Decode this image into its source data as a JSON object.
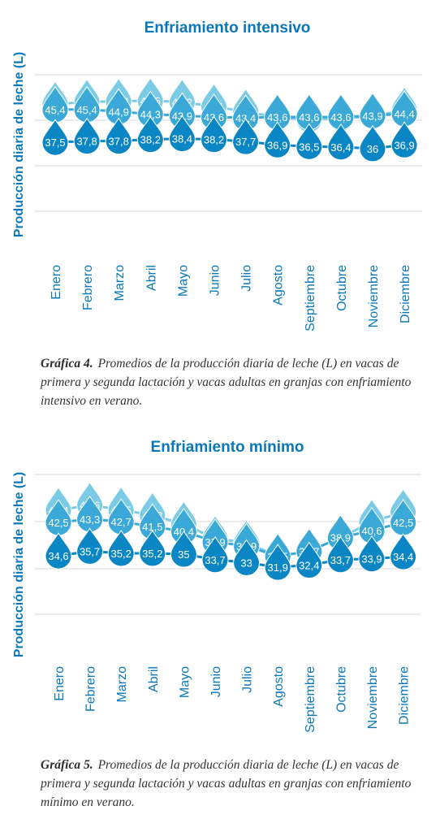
{
  "colors": {
    "title": "#0a78b8",
    "series_primera": "#7ccbe6",
    "series_segunda": "#3aa9d8",
    "series_adultas": "#0a86c4",
    "grid": "#d9d9d9",
    "axis_text": "#0a78b8"
  },
  "chart_data": [
    {
      "type": "line",
      "title": "Enfriamiento intensivo",
      "ylabel": "Producción diaria de leche (L)",
      "xlabel": "",
      "ylim": [
        10,
        60
      ],
      "grid": true,
      "legend": "none",
      "categories": [
        "Enero",
        "Febrero",
        "Marzo",
        "Abril",
        "Mayo",
        "Junio",
        "Julio",
        "Agosto",
        "Septiembre",
        "Octubre",
        "Noviembre",
        "Diciembre"
      ],
      "series": [
        {
          "values": [
            46.7,
            47.2,
            47.4,
            47.5,
            47.2,
            46.1,
            44.9,
            43.5,
            43,
            43.3,
            43.7,
            45.3
          ]
        },
        {
          "values": [
            45.4,
            45.4,
            44.9,
            44.3,
            43.9,
            43.6,
            43.4,
            43.6,
            43.6,
            43.6,
            43.9,
            44.4
          ]
        },
        {
          "values": [
            37.5,
            37.8,
            37.8,
            38.2,
            38.4,
            38.2,
            37.7,
            36.9,
            36.5,
            36.4,
            36,
            36.9
          ]
        }
      ]
    },
    {
      "type": "line",
      "title": "Enfriamiento mínimo",
      "ylabel": "Producción diaria de leche (L)",
      "xlabel": "",
      "ylim": [
        10,
        55
      ],
      "grid": true,
      "legend": "none",
      "categories": [
        "Enero",
        "Febrero",
        "Marzo",
        "Abril",
        "Mayo",
        "Junio",
        "Julio",
        "Agosto",
        "Septiembre",
        "Octubre",
        "Noviembre",
        "Diciembre"
      ],
      "series": [
        {
          "values": [
            45.4,
            46.6,
            45.5,
            44.2,
            42.1,
            38.7,
            37.7,
            34.5,
            35.7,
            38.9,
            42.6,
            45
          ]
        },
        {
          "values": [
            42.5,
            43.3,
            42.7,
            41.5,
            40.4,
            37.9,
            36.9,
            34.5,
            35.7,
            38.9,
            40.6,
            42.5
          ]
        },
        {
          "values": [
            34.6,
            35.7,
            35.2,
            35.2,
            35,
            33.7,
            33,
            31.9,
            32.4,
            33.7,
            33.9,
            34.4
          ]
        }
      ]
    }
  ],
  "captions": [
    {
      "label": "Gráfica 4.",
      "text": "Promedios de la producción diaria de leche (L) en vacas de primera y segunda lactación y vacas adultas en granjas con enfriamiento intensivo en verano."
    },
    {
      "label": "Gráfica 5.",
      "text": "Promedios de la producción diaria de leche (L) en vacas de primera y segunda lactación y vacas adultas en granjas con enfriamiento mínimo en verano."
    }
  ]
}
